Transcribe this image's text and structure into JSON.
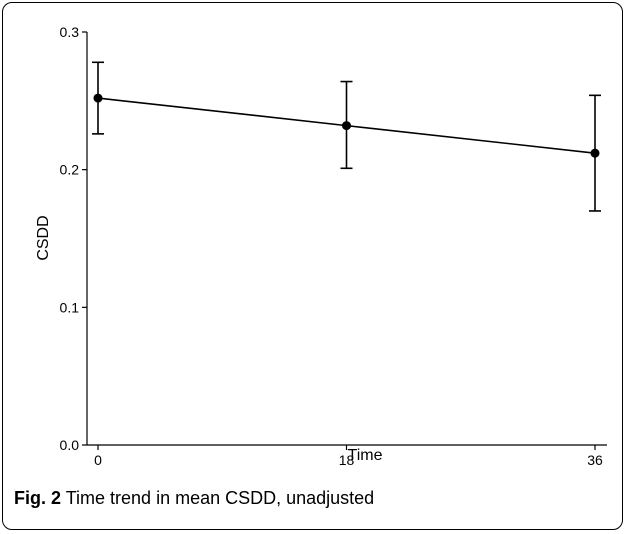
{
  "chart_data": {
    "type": "line",
    "xlabel": "Time",
    "ylabel": "CSDD",
    "x": [
      0,
      18,
      36
    ],
    "series": [
      {
        "values": [
          0.252,
          0.232,
          0.212
        ],
        "error_low": [
          0.226,
          0.201,
          0.17
        ],
        "error_high": [
          0.278,
          0.264,
          0.254
        ]
      }
    ],
    "xticks": [
      "0",
      "18",
      "36"
    ],
    "yticks": [
      "0.0",
      "0.1",
      "0.2",
      "0.3"
    ],
    "ylim": [
      0,
      0.3
    ],
    "xlim": [
      0,
      36
    ],
    "grid": false,
    "marker": "filled-circle",
    "line_color": "#000000",
    "error_bars": true
  },
  "caption": {
    "label": "Fig. 2",
    "text": "Time trend in mean CSDD, unadjusted"
  }
}
